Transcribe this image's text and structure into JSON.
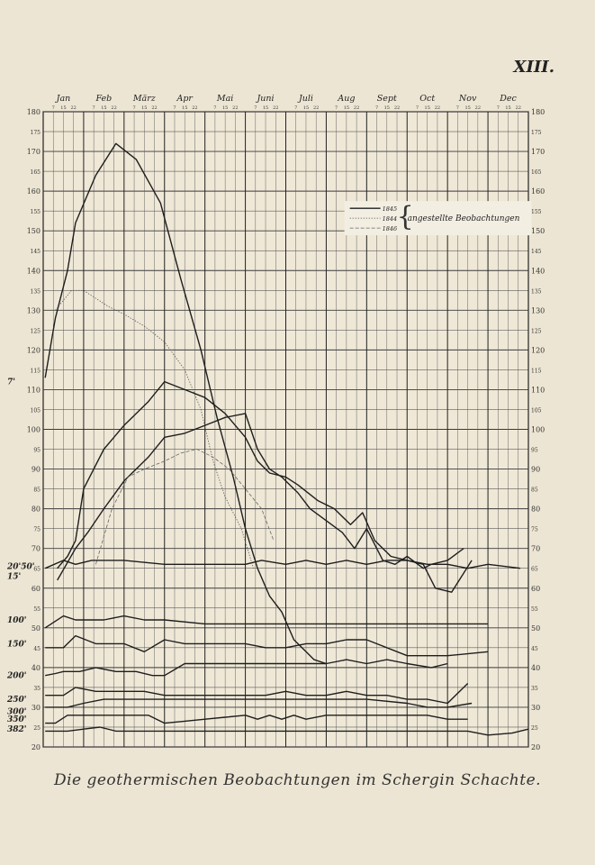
{
  "plate_number": "XIII.",
  "caption": "Die geothermischen Beobachtungen im Schergin Schachte.",
  "chart_data": {
    "type": "line",
    "title": "",
    "xlabel": "",
    "ylabel": "",
    "months": [
      "Jan",
      "Feb",
      "März",
      "Apr",
      "Mai",
      "Juni",
      "Juli",
      "Aug",
      "Sept",
      "Oct",
      "Nov",
      "Dec"
    ],
    "day_ticks": [
      "7",
      "15",
      "22"
    ],
    "xlim": [
      0,
      12
    ],
    "ylim": [
      20,
      180
    ],
    "y_ticks": [
      20,
      25,
      30,
      35,
      40,
      45,
      50,
      55,
      60,
      65,
      70,
      75,
      80,
      85,
      90,
      95,
      100,
      105,
      110,
      115,
      120,
      125,
      130,
      135,
      140,
      145,
      150,
      155,
      160,
      165,
      170,
      175,
      180
    ],
    "grid": true,
    "legend": {
      "placement": "top-right",
      "entries": [
        "1845",
        "1844",
        "1846"
      ],
      "bracket_label": "angestellte Beobachtungen"
    },
    "depth_labels_left": [
      {
        "text": "7'",
        "y": 112
      },
      {
        "text": "20'50'",
        "y": 65.5
      },
      {
        "text": "15'",
        "y": 63
      },
      {
        "text": "100'",
        "y": 52
      },
      {
        "text": "150'",
        "y": 46
      },
      {
        "text": "200'",
        "y": 38
      },
      {
        "text": "250'",
        "y": 32
      },
      {
        "text": "300'",
        "y": 29
      },
      {
        "text": "350'",
        "y": 27
      },
      {
        "text": "382'",
        "y": 24.5
      }
    ],
    "series": [
      {
        "style": "1845",
        "x": [
          0.05,
          0.3,
          0.6,
          0.8,
          1.3,
          1.8,
          2.3,
          2.9,
          3.4,
          3.9,
          4.3,
          4.7,
          5.0,
          5.3,
          5.6,
          5.9,
          6.2,
          6.5,
          6.7,
          7.0
        ],
        "values": [
          113,
          128,
          140,
          152,
          164,
          172,
          168,
          157,
          138,
          120,
          103,
          88,
          75,
          65,
          58,
          54,
          47,
          44,
          42,
          41
        ]
      },
      {
        "style": "1844",
        "x": [
          0.3,
          0.7,
          1.0,
          1.3,
          1.6,
          2.0,
          2.5,
          3.0,
          3.5,
          3.9,
          4.2,
          4.5,
          4.9,
          5.2
        ],
        "values": [
          130,
          135,
          135,
          133,
          131,
          129,
          126,
          122,
          115,
          105,
          92,
          83,
          75,
          65
        ]
      },
      {
        "style": "1845",
        "x": [
          0.35,
          0.6,
          0.8,
          1.0,
          1.5,
          2.0,
          2.6,
          3.0,
          3.5,
          4.0,
          4.5,
          5.0,
          5.3,
          5.6,
          6.0,
          6.3,
          6.8,
          7.2,
          7.6,
          7.9,
          8.2,
          8.6,
          9.0,
          9.4,
          9.7,
          10.1,
          10.6
        ],
        "values": [
          65,
          68,
          72,
          85,
          95,
          101,
          107,
          112,
          110,
          108,
          104,
          98,
          92,
          89,
          88,
          86,
          82,
          80,
          76,
          79,
          72,
          68,
          67,
          66,
          60,
          59,
          67
        ]
      },
      {
        "style": "1845",
        "x": [
          0.35,
          0.8,
          1.1,
          1.5,
          2.0,
          2.6,
          3.0,
          3.5,
          4.0,
          4.5,
          5.0,
          5.3,
          5.6,
          5.9,
          6.3,
          6.6,
          7.0,
          7.4,
          7.7,
          8.0,
          8.4,
          8.7,
          9.0,
          9.4,
          9.6,
          10.0,
          10.4
        ],
        "values": [
          62,
          70,
          74,
          80,
          87,
          93,
          98,
          99,
          101,
          103,
          104,
          95,
          90,
          88,
          84,
          80,
          77,
          74,
          70,
          75,
          67,
          66,
          68,
          65,
          66,
          67,
          70
        ]
      },
      {
        "style": "1846",
        "x": [
          1.3,
          1.7,
          2.1,
          2.5,
          3.0,
          3.4,
          3.8,
          4.2,
          4.6,
          5.0,
          5.4,
          5.7
        ],
        "values": [
          66,
          80,
          88,
          90,
          92,
          94,
          95,
          93,
          90,
          85,
          80,
          72
        ]
      },
      {
        "style": "1845",
        "x": [
          0.05,
          0.5,
          0.8,
          1.2,
          2.0,
          3.0,
          4.0,
          5.0,
          5.4,
          6.0,
          6.5,
          7.0,
          7.5,
          8.0,
          8.5,
          9.0,
          9.5,
          10.0,
          10.5,
          11.0,
          11.8
        ],
        "values": [
          65,
          67,
          66,
          67,
          67,
          66,
          66,
          66,
          67,
          66,
          67,
          66,
          67,
          66,
          67,
          67,
          66,
          66,
          65,
          66,
          65
        ]
      },
      {
        "style": "1845",
        "x": [
          0.05,
          0.5,
          0.8,
          1.5,
          2.0,
          2.5,
          3.0,
          4.0,
          5.0,
          5.5,
          6.0,
          7.0,
          8.0,
          9.0,
          10.0,
          11.0
        ],
        "values": [
          50,
          53,
          52,
          52,
          53,
          52,
          52,
          51,
          51,
          51,
          51,
          51,
          51,
          51,
          51,
          51
        ]
      },
      {
        "style": "1845",
        "x": [
          0.05,
          0.5,
          0.8,
          1.3,
          2.0,
          2.5,
          3.0,
          3.5,
          4.0,
          5.0,
          5.5,
          6.0,
          6.5,
          7.0,
          7.5,
          8.0,
          9.0,
          10.0,
          11.0
        ],
        "values": [
          45,
          45,
          48,
          46,
          46,
          44,
          47,
          46,
          46,
          46,
          45,
          45,
          46,
          46,
          47,
          47,
          43,
          43,
          44
        ]
      },
      {
        "style": "1845",
        "x": [
          0.05,
          0.3,
          0.5,
          0.9,
          1.3,
          1.8,
          2.3,
          2.7,
          3.0,
          3.5,
          4.0,
          5.0,
          6.0,
          7.0,
          7.5,
          8.0,
          8.5,
          9.0,
          9.6,
          10.0
        ],
        "values": [
          38,
          38.5,
          39,
          39,
          40,
          39,
          39,
          38,
          38,
          41,
          41,
          41,
          41,
          41,
          42,
          41,
          42,
          41,
          40,
          41
        ]
      },
      {
        "style": "1845",
        "x": [
          0.05,
          0.5,
          0.8,
          1.3,
          1.8,
          2.5,
          3.0,
          4.0,
          5.0,
          5.5,
          6.0,
          6.5,
          7.0,
          7.5,
          8.0,
          8.5,
          9.0,
          9.5,
          10.0,
          10.5
        ],
        "values": [
          33,
          33,
          35,
          34,
          34,
          34,
          33,
          33,
          33,
          33,
          34,
          33,
          33,
          34,
          33,
          33,
          32,
          32,
          31,
          36
        ]
      },
      {
        "style": "1845",
        "x": [
          0.05,
          0.6,
          1.0,
          1.5,
          2.0,
          3.0,
          4.0,
          5.0,
          6.0,
          7.0,
          8.0,
          9.0,
          9.5,
          10.0,
          10.6
        ],
        "values": [
          30,
          30,
          31,
          32,
          32,
          32,
          32,
          32,
          32,
          32,
          32,
          31,
          30,
          30,
          31
        ]
      },
      {
        "style": "1845",
        "x": [
          0.05,
          0.3,
          0.6,
          0.9,
          1.2,
          1.6,
          2.0,
          2.6,
          3.0,
          3.5,
          4.0,
          4.5,
          5.0,
          5.3,
          5.6,
          5.9,
          6.2,
          6.5,
          7.0,
          7.5,
          8.0,
          8.5,
          9.0,
          9.5,
          10.0,
          10.5
        ],
        "values": [
          26,
          26,
          28,
          28,
          28,
          28,
          28,
          28,
          26,
          26.5,
          27,
          27.5,
          28,
          27,
          28,
          27,
          28,
          27,
          28,
          28,
          28,
          28,
          28,
          28,
          27,
          27
        ]
      },
      {
        "style": "1845",
        "x": [
          0.05,
          0.6,
          1.0,
          1.4,
          1.8,
          2.2,
          3.0,
          4.0,
          5.0,
          6.0,
          7.0,
          8.0,
          9.0,
          10.0,
          10.5,
          11.0,
          11.6,
          12.0
        ],
        "values": [
          24,
          24,
          24.5,
          25,
          24,
          24,
          24,
          24,
          24,
          24,
          24,
          24,
          24,
          24,
          24,
          23,
          23.5,
          24.5
        ]
      }
    ]
  }
}
